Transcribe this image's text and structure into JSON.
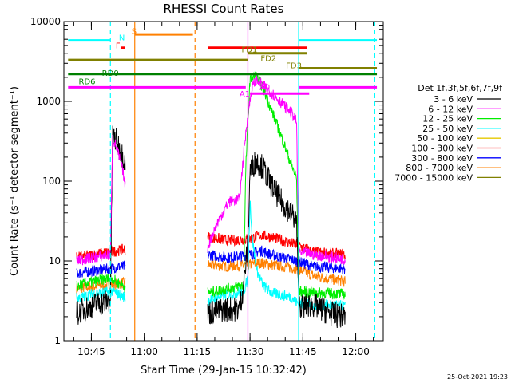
{
  "chart_data": {
    "type": "line",
    "title": "RHESSI Count Rates",
    "xlabel": "Start Time (29-Jan-15 10:32:42)",
    "ylabel": "Count Rate (s⁻¹ detector segment⁻¹)",
    "ylog": true,
    "xlim_minutes": [
      10.62,
      12.13
    ],
    "ylim": [
      1,
      10000
    ],
    "x_ticks": [
      "10:45",
      "11:00",
      "11:15",
      "11:30",
      "11:45",
      "12:00"
    ],
    "y_ticks": [
      "1",
      "10",
      "100",
      "1000",
      "10000"
    ],
    "legend_title": "Det 1f,3f,5f,6f,7f,9f",
    "legend_position": "right",
    "series": [
      {
        "name": "3 - 6 keV",
        "color": "#000000",
        "points": [
          [
            10.68,
            2.2
          ],
          [
            10.72,
            2.5
          ],
          [
            10.76,
            2.8
          ],
          [
            10.8,
            3.0
          ],
          [
            10.84,
            3.2
          ],
          [
            10.85,
            380
          ],
          [
            10.87,
            310
          ],
          [
            10.9,
            200
          ],
          [
            10.91,
            180
          ],
          "gap",
          [
            11.3,
            2.2
          ],
          [
            11.32,
            2.3
          ],
          [
            11.4,
            2.5
          ],
          [
            11.45,
            2.5
          ],
          [
            11.47,
            5
          ],
          [
            11.49,
            17
          ],
          [
            11.5,
            140
          ],
          [
            11.53,
            180
          ],
          [
            11.56,
            150
          ],
          [
            11.6,
            90
          ],
          [
            11.65,
            55
          ],
          [
            11.7,
            38
          ],
          [
            11.72,
            32
          ],
          [
            11.73,
            2.8
          ],
          [
            11.75,
            2.7
          ],
          [
            11.8,
            2.8
          ],
          [
            11.85,
            2.4
          ],
          [
            11.9,
            2.1
          ],
          [
            11.95,
            2.0
          ]
        ]
      },
      {
        "name": "6 - 12 keV",
        "color": "#ff00ff",
        "points": [
          [
            10.68,
            10
          ],
          [
            10.72,
            10.5
          ],
          [
            10.76,
            11
          ],
          [
            10.8,
            11.5
          ],
          [
            10.84,
            12
          ],
          [
            10.85,
            350
          ],
          [
            10.87,
            260
          ],
          [
            10.9,
            130
          ],
          [
            10.91,
            85
          ],
          "gap",
          [
            11.3,
            15
          ],
          [
            11.35,
            32
          ],
          [
            11.4,
            55
          ],
          [
            11.45,
            60
          ],
          [
            11.47,
            220
          ],
          [
            11.49,
            700
          ],
          [
            11.51,
            1500
          ],
          [
            11.53,
            1900
          ],
          [
            11.56,
            1600
          ],
          [
            11.6,
            1300
          ],
          [
            11.65,
            950
          ],
          [
            11.7,
            700
          ],
          [
            11.72,
            550
          ],
          [
            11.73,
            13
          ],
          [
            11.8,
            12
          ],
          [
            11.9,
            11
          ],
          [
            11.95,
            10.5
          ]
        ]
      },
      {
        "name": "12 - 25 keV",
        "color": "#00ee00",
        "points": [
          [
            10.68,
            4.8
          ],
          [
            10.72,
            5.2
          ],
          [
            10.76,
            5.5
          ],
          [
            10.8,
            5.8
          ],
          [
            10.84,
            6.0
          ],
          [
            10.85,
            6.0
          ],
          [
            10.88,
            5.2
          ],
          [
            10.91,
            4.8
          ],
          "gap",
          [
            11.3,
            4.0
          ],
          [
            11.4,
            4.5
          ],
          [
            11.47,
            5.0
          ],
          [
            11.48,
            150
          ],
          [
            11.5,
            1900
          ],
          [
            11.53,
            2100
          ],
          [
            11.56,
            1500
          ],
          [
            11.6,
            800
          ],
          [
            11.65,
            350
          ],
          [
            11.7,
            150
          ],
          [
            11.72,
            110
          ],
          [
            11.73,
            4.2
          ],
          [
            11.8,
            4.0
          ],
          [
            11.9,
            3.9
          ],
          [
            11.95,
            3.8
          ]
        ]
      },
      {
        "name": "25 - 50 keV",
        "color": "#00ffff",
        "points": [
          [
            10.68,
            3.4
          ],
          [
            10.72,
            3.6
          ],
          [
            10.76,
            3.9
          ],
          [
            10.8,
            4.0
          ],
          [
            10.84,
            4.1
          ],
          [
            10.85,
            4.2
          ],
          [
            10.88,
            3.8
          ],
          [
            10.91,
            3.5
          ],
          "gap",
          [
            11.3,
            3.2
          ],
          [
            11.4,
            3.8
          ],
          [
            11.47,
            4.2
          ],
          [
            11.49,
            6
          ],
          [
            11.5,
            60
          ],
          [
            11.51,
            20
          ],
          [
            11.53,
            8
          ],
          [
            11.56,
            5
          ],
          [
            11.6,
            4
          ],
          [
            11.7,
            3.5
          ],
          [
            11.72,
            3.0
          ],
          [
            11.73,
            2.9
          ],
          [
            11.8,
            2.8
          ],
          [
            11.9,
            2.8
          ],
          [
            11.95,
            2.7
          ]
        ]
      },
      {
        "name": "50 - 100 keV",
        "color": "#e6c800",
        "points": [
          [
            10.68,
            6.0
          ],
          [
            10.76,
            6.6
          ],
          [
            10.84,
            7.5
          ],
          [
            10.88,
            7.2
          ],
          [
            10.91,
            7.4
          ],
          "gap",
          [
            11.3,
            7.5
          ],
          [
            11.4,
            8
          ],
          [
            11.5,
            8.8
          ],
          [
            11.6,
            8
          ],
          [
            11.72,
            7.2
          ],
          [
            11.8,
            6.5
          ],
          [
            11.95,
            6.2
          ]
        ]
      },
      {
        "name": "100 - 300 keV",
        "color": "#ff0000",
        "points": [
          [
            10.68,
            11
          ],
          [
            10.76,
            12
          ],
          [
            10.84,
            13
          ],
          [
            10.88,
            13.5
          ],
          [
            10.91,
            14
          ],
          "gap",
          [
            11.3,
            20
          ],
          [
            11.4,
            18
          ],
          [
            11.5,
            19
          ],
          [
            11.55,
            21
          ],
          [
            11.6,
            20
          ],
          [
            11.72,
            16
          ],
          [
            11.8,
            13
          ],
          [
            11.95,
            12
          ]
        ]
      },
      {
        "name": "300 - 800 keV",
        "color": "#0000ff",
        "points": [
          [
            10.68,
            7.0
          ],
          [
            10.76,
            7.5
          ],
          [
            10.84,
            8.0
          ],
          [
            10.88,
            8.5
          ],
          [
            10.91,
            8.5
          ],
          "gap",
          [
            11.3,
            12
          ],
          [
            11.4,
            11
          ],
          [
            11.5,
            12
          ],
          [
            11.55,
            13.5
          ],
          [
            11.6,
            12
          ],
          [
            11.72,
            10
          ],
          [
            11.8,
            8.5
          ],
          [
            11.95,
            8
          ]
        ]
      },
      {
        "name": "800 - 7000 keV",
        "color": "#ff8000",
        "points": [
          [
            10.68,
            4.5
          ],
          [
            10.76,
            4.8
          ],
          [
            10.84,
            5.0
          ],
          [
            10.88,
            5.2
          ],
          [
            10.91,
            5.3
          ],
          "gap",
          [
            11.3,
            9
          ],
          [
            11.4,
            8.5
          ],
          [
            11.5,
            9
          ],
          [
            11.55,
            9.5
          ],
          [
            11.6,
            9
          ],
          [
            11.72,
            8
          ],
          [
            11.8,
            6.5
          ],
          [
            11.95,
            5.5
          ]
        ]
      },
      {
        "name": "7000 - 15000 keV",
        "color": "#808000",
        "points": []
      }
    ],
    "annotations": [
      {
        "text": "F",
        "color": "#ff0000",
        "x": 10.865,
        "y": 4600
      },
      {
        "text": "N",
        "color": "#00ffff",
        "x": 10.88,
        "y": 5800
      },
      {
        "text": "S",
        "color": "#ff8000",
        "x": 10.94,
        "y": 7000
      },
      {
        "text": "FD1",
        "color": "#808000",
        "x": 11.46,
        "y": 4100
      },
      {
        "text": "FD2",
        "color": "#808000",
        "x": 11.55,
        "y": 3200
      },
      {
        "text": "FD3",
        "color": "#808000",
        "x": 11.67,
        "y": 2600
      },
      {
        "text": "RD0",
        "color": "#008000",
        "x": 10.8,
        "y": 2100
      },
      {
        "text": "RD6",
        "color": "#008000",
        "x": 10.69,
        "y": 1650
      },
      {
        "text": "A0",
        "color": "#ff00ff",
        "x": 11.545,
        "y": 1400
      },
      {
        "text": "A1",
        "color": "#ff00ff",
        "x": 11.45,
        "y": 1150
      }
    ],
    "flag_bars": [
      {
        "color": "#00ffff",
        "y": 5800,
        "segments": [
          [
            10.64,
            10.84
          ],
          [
            11.73,
            12.1
          ]
        ]
      },
      {
        "color": "#ff0000",
        "y": 4700,
        "segments": [
          [
            10.89,
            10.91
          ],
          [
            11.3,
            11.77
          ]
        ]
      },
      {
        "color": "#ff8000",
        "y": 6900,
        "segments": [
          [
            10.955,
            11.23
          ]
        ]
      },
      {
        "color": "#808000",
        "y": 3300,
        "segments": [
          [
            10.64,
            11.49
          ]
        ]
      },
      {
        "color": "#808000",
        "y": 4000,
        "segments": [
          [
            11.49,
            11.77
          ]
        ]
      },
      {
        "color": "#808000",
        "y": 2600,
        "segments": [
          [
            11.73,
            12.1
          ]
        ]
      },
      {
        "color": "#008000",
        "y": 2200,
        "segments": [
          [
            10.64,
            12.1
          ]
        ]
      },
      {
        "color": "#ff00ff",
        "y": 1500,
        "segments": [
          [
            10.64,
            11.48
          ],
          [
            11.73,
            12.1
          ]
        ]
      },
      {
        "color": "#ff00ff",
        "y": 1250,
        "segments": [
          [
            11.5,
            11.78
          ]
        ]
      }
    ],
    "vlines": [
      {
        "x": 10.84,
        "color": "#00ffff",
        "dash": true
      },
      {
        "x": 10.955,
        "color": "#ff8000",
        "dash": false
      },
      {
        "x": 11.24,
        "color": "#ff8000",
        "dash": true
      },
      {
        "x": 11.49,
        "color": "#ff00ff",
        "dash": false
      },
      {
        "x": 11.73,
        "color": "#00ffff",
        "dash": false
      },
      {
        "x": 12.09,
        "color": "#00ffff",
        "dash": true
      }
    ]
  },
  "footer_date": "25-Oct-2021 19:23"
}
